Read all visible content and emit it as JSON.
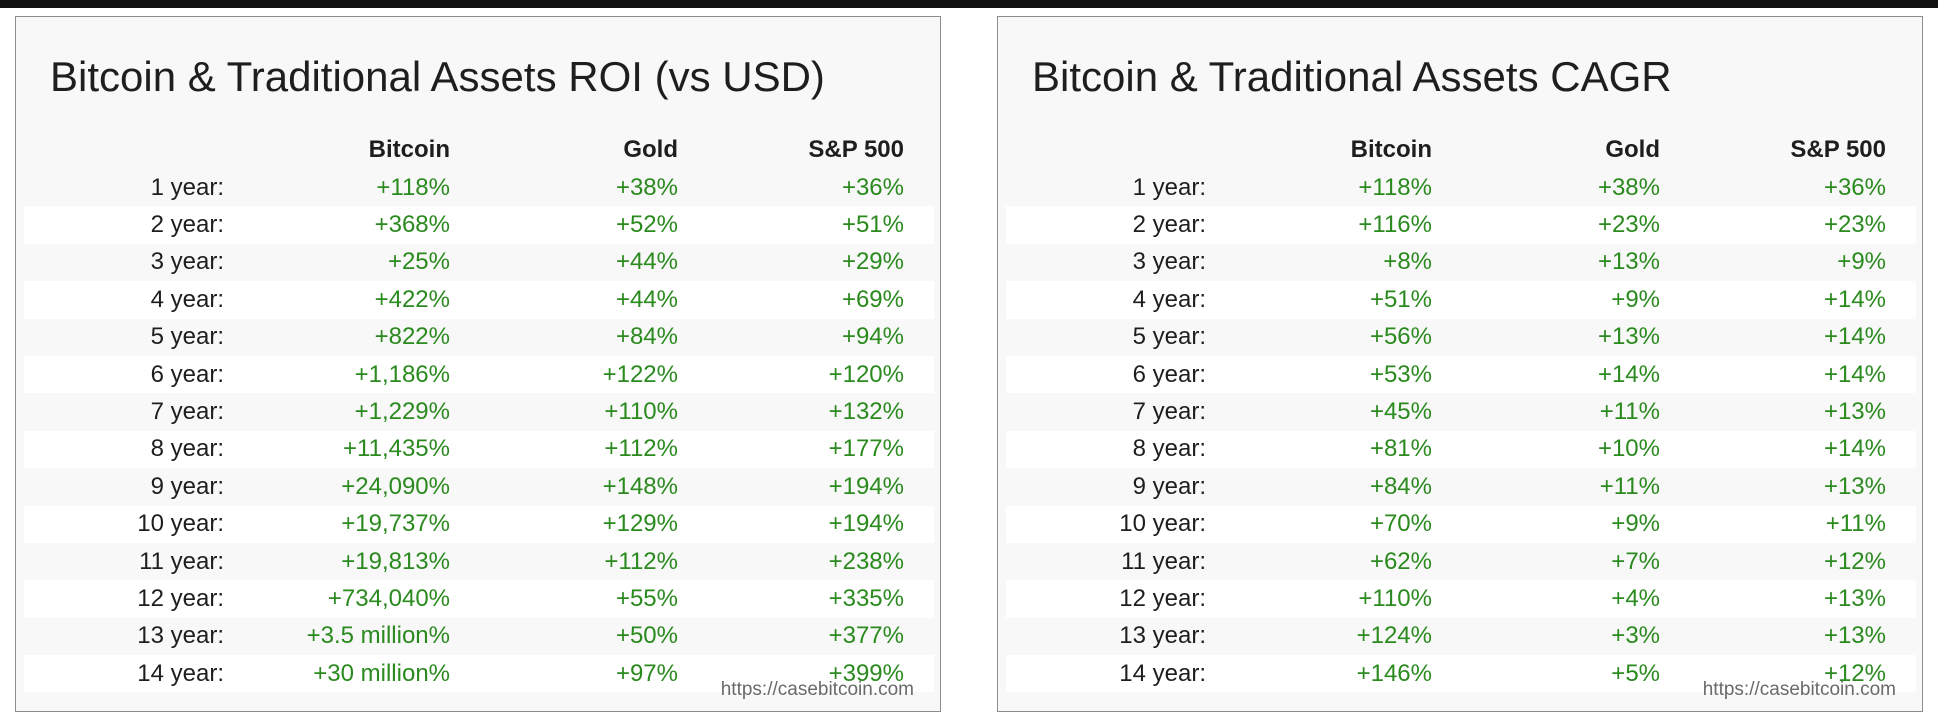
{
  "roi": {
    "title": "Bitcoin & Traditional Assets ROI (vs USD)",
    "columns": [
      "Bitcoin",
      "Gold",
      "S&P 500"
    ],
    "rows": [
      {
        "label": "1 year:",
        "values": [
          "+118%",
          "+38%",
          "+36%"
        ]
      },
      {
        "label": "2 year:",
        "values": [
          "+368%",
          "+52%",
          "+51%"
        ]
      },
      {
        "label": "3 year:",
        "values": [
          "+25%",
          "+44%",
          "+29%"
        ]
      },
      {
        "label": "4 year:",
        "values": [
          "+422%",
          "+44%",
          "+69%"
        ]
      },
      {
        "label": "5 year:",
        "values": [
          "+822%",
          "+84%",
          "+94%"
        ]
      },
      {
        "label": "6 year:",
        "values": [
          "+1,186%",
          "+122%",
          "+120%"
        ]
      },
      {
        "label": "7 year:",
        "values": [
          "+1,229%",
          "+110%",
          "+132%"
        ]
      },
      {
        "label": "8 year:",
        "values": [
          "+11,435%",
          "+112%",
          "+177%"
        ]
      },
      {
        "label": "9 year:",
        "values": [
          "+24,090%",
          "+148%",
          "+194%"
        ]
      },
      {
        "label": "10 year:",
        "values": [
          "+19,737%",
          "+129%",
          "+194%"
        ]
      },
      {
        "label": "11 year:",
        "values": [
          "+19,813%",
          "+112%",
          "+238%"
        ]
      },
      {
        "label": "12 year:",
        "values": [
          "+734,040%",
          "+55%",
          "+335%"
        ]
      },
      {
        "label": "13 year:",
        "values": [
          "+3.5 million%",
          "+50%",
          "+377%"
        ]
      },
      {
        "label": "14 year:",
        "values": [
          "+30 million%",
          "+97%",
          "+399%"
        ]
      }
    ],
    "source": "https://casebitcoin.com"
  },
  "cagr": {
    "title": "Bitcoin & Traditional Assets CAGR",
    "columns": [
      "Bitcoin",
      "Gold",
      "S&P 500"
    ],
    "rows": [
      {
        "label": "1 year:",
        "values": [
          "+118%",
          "+38%",
          "+36%"
        ]
      },
      {
        "label": "2 year:",
        "values": [
          "+116%",
          "+23%",
          "+23%"
        ]
      },
      {
        "label": "3 year:",
        "values": [
          "+8%",
          "+13%",
          "+9%"
        ]
      },
      {
        "label": "4 year:",
        "values": [
          "+51%",
          "+9%",
          "+14%"
        ]
      },
      {
        "label": "5 year:",
        "values": [
          "+56%",
          "+13%",
          "+14%"
        ]
      },
      {
        "label": "6 year:",
        "values": [
          "+53%",
          "+14%",
          "+14%"
        ]
      },
      {
        "label": "7 year:",
        "values": [
          "+45%",
          "+11%",
          "+13%"
        ]
      },
      {
        "label": "8 year:",
        "values": [
          "+81%",
          "+10%",
          "+14%"
        ]
      },
      {
        "label": "9 year:",
        "values": [
          "+84%",
          "+11%",
          "+13%"
        ]
      },
      {
        "label": "10 year:",
        "values": [
          "+70%",
          "+9%",
          "+11%"
        ]
      },
      {
        "label": "11 year:",
        "values": [
          "+62%",
          "+7%",
          "+12%"
        ]
      },
      {
        "label": "12 year:",
        "values": [
          "+110%",
          "+4%",
          "+13%"
        ]
      },
      {
        "label": "13 year:",
        "values": [
          "+124%",
          "+3%",
          "+13%"
        ]
      },
      {
        "label": "14 year:",
        "values": [
          "+146%",
          "+5%",
          "+12%"
        ]
      }
    ],
    "source": "https://casebitcoin.com"
  },
  "colors": {
    "value_green": "#2a8a1e",
    "label_text": "#1e1e1e",
    "panel_bg": "#f8f8f8",
    "row_alt_bg": "#ffffff",
    "panel_border": "#8c8c8c",
    "source_text": "#6a6a6a"
  }
}
